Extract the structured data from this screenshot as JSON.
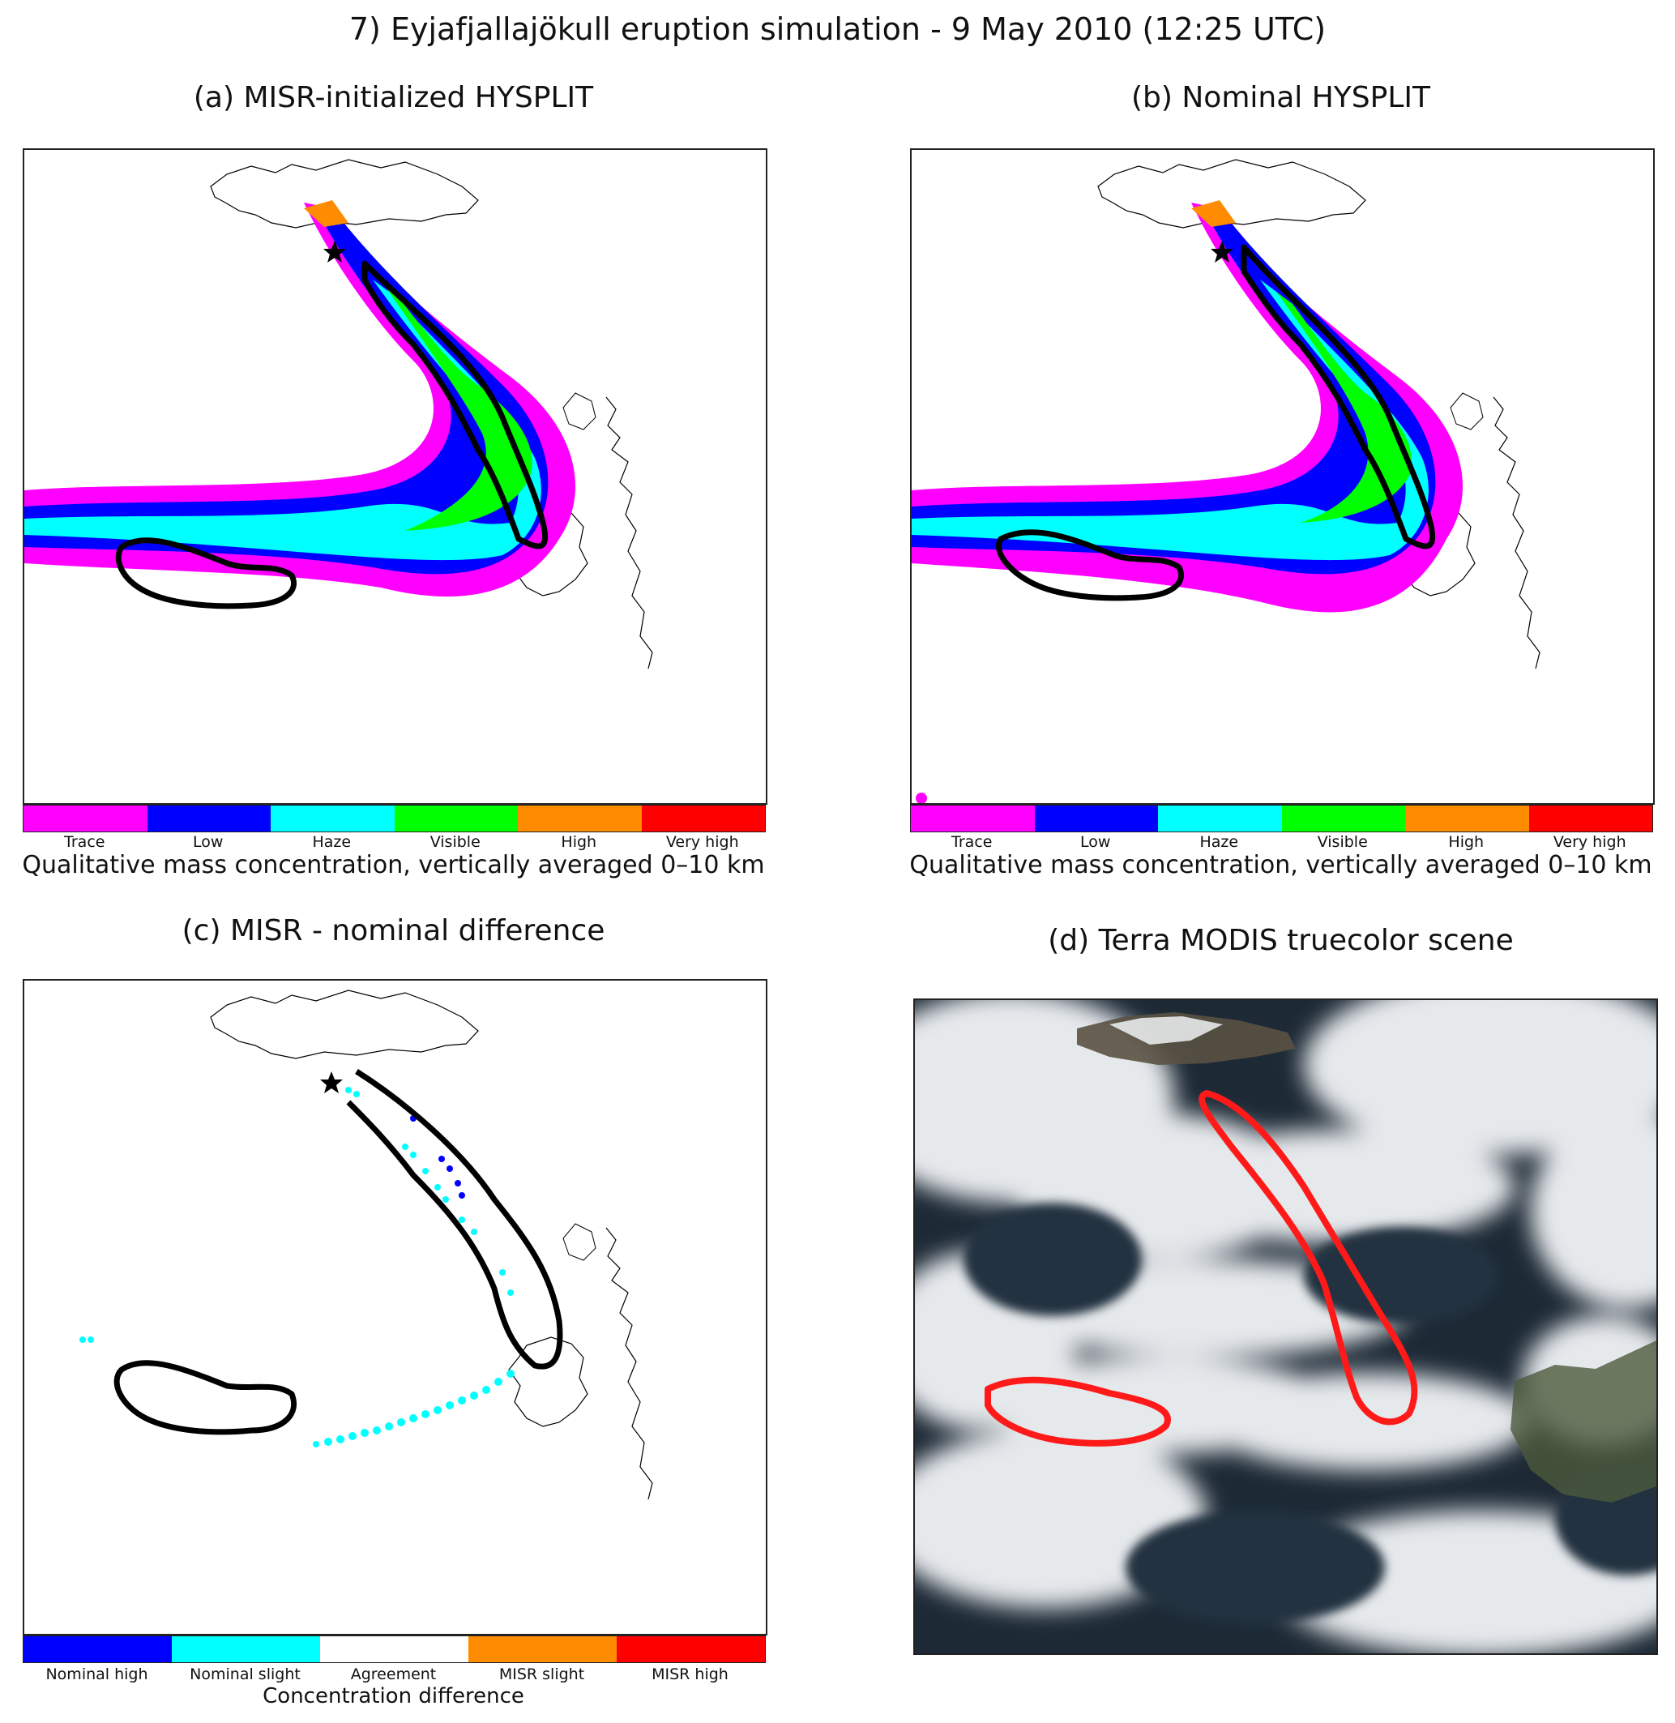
{
  "figure_title": "7) Eyjafjallajökull eruption simulation - 9 May 2010   (12:25 UTC)",
  "panels": {
    "a": {
      "title": "(a) MISR-initialized HYSPLIT"
    },
    "b": {
      "title": "(b) Nominal HYSPLIT"
    },
    "c": {
      "title": "(c) MISR - nominal difference"
    },
    "d": {
      "title": "(d) Terra MODIS truecolor scene"
    }
  },
  "concentration_legend": {
    "caption": "Qualitative mass concentration, vertically averaged 0–10 km",
    "categories": [
      {
        "label": "Trace",
        "color": "#ff00ff"
      },
      {
        "label": "Low",
        "color": "#0000ff"
      },
      {
        "label": "Haze",
        "color": "#00ffff"
      },
      {
        "label": "Visible",
        "color": "#00ff00"
      },
      {
        "label": "High",
        "color": "#ff8c00"
      },
      {
        "label": "Very high",
        "color": "#ff0000"
      }
    ]
  },
  "difference_legend": {
    "caption": "Concentration difference",
    "categories": [
      {
        "label": "Nominal high",
        "color": "#0000ff"
      },
      {
        "label": "Nominal slight",
        "color": "#00ffff"
      },
      {
        "label": "Agreement",
        "color": "#ffffff"
      },
      {
        "label": "MISR slight",
        "color": "#ff8c00"
      },
      {
        "label": "MISR high",
        "color": "#ff0000"
      }
    ]
  },
  "colors": {
    "plume_outline_model": "#000000",
    "plume_outline_modis": "#ff1a1a",
    "vent_marker": "#000000"
  },
  "icons": {
    "vent": "star-icon"
  }
}
